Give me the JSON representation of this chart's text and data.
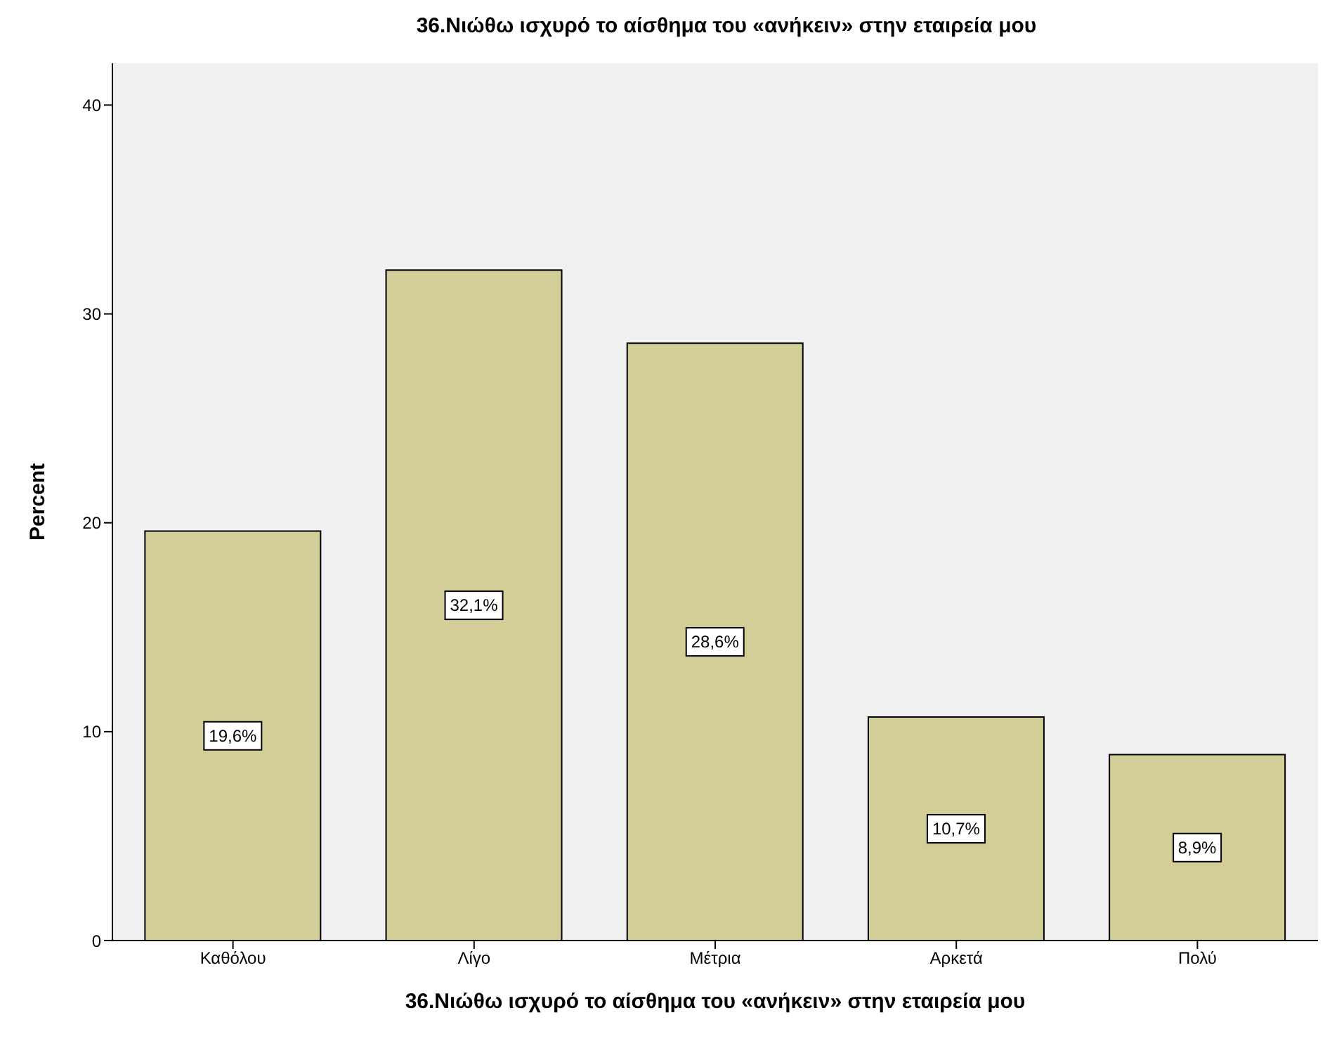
{
  "chart_data": {
    "type": "bar",
    "title": "36.Νιώθω ισχυρό το αίσθημα του «ανήκειν» στην εταιρεία μου",
    "xlabel": "36.Νιώθω ισχυρό το αίσθημα του «ανήκειν» στην εταιρεία μου",
    "ylabel": "Percent",
    "categories": [
      "Καθόλου",
      "Λίγο",
      "Μέτρια",
      "Αρκετά",
      "Πολύ"
    ],
    "values": [
      19.6,
      32.1,
      28.6,
      10.7,
      8.9
    ],
    "value_labels": [
      "19,6%",
      "32,1%",
      "28,6%",
      "10,7%",
      "8,9%"
    ],
    "color": "#d3ce97",
    "ylim": [
      0,
      42
    ],
    "yticks": [
      0,
      10,
      20,
      30,
      40
    ],
    "grid": false
  }
}
